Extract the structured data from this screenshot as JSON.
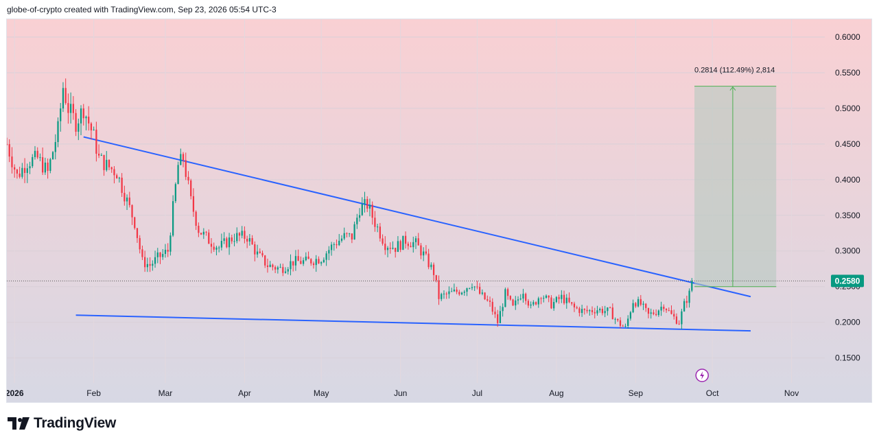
{
  "header": {
    "attribution": "globe-of-crypto created with TradingView.com, Sep 23, 2026 05:54 UTC-3"
  },
  "footer": {
    "brand": "TradingView",
    "logo_icon": "tradingview-logo-icon"
  },
  "colors": {
    "bg_top": "#f9d0d3",
    "bg_bottom": "#d7d8e4",
    "up_candle": "#089981",
    "down_candle": "#f23645",
    "trendline": "#2962ff",
    "measure_fill": "#b7c9c0",
    "measure_line": "#4caf50",
    "price_tag": "#089981",
    "flash_icon": "#9c27b0"
  },
  "chart_data": {
    "type": "candlestick",
    "title": "",
    "xlabel": "",
    "ylabel": "",
    "x_range": [
      "2025-12-29",
      "2026-11-14"
    ],
    "ylim": [
      0.115,
      0.625
    ],
    "grid": true,
    "y_ticks": [
      "0.1500",
      "0.2000",
      "0.2500",
      "0.3000",
      "0.3500",
      "0.4000",
      "0.4500",
      "0.5000",
      "0.5500",
      "0.6000"
    ],
    "x_ticks": [
      {
        "date": "2026-01-01",
        "label": "2026"
      },
      {
        "date": "2026-02-01",
        "label": "Feb"
      },
      {
        "date": "2026-03-01",
        "label": "Mar"
      },
      {
        "date": "2026-04-01",
        "label": "Apr"
      },
      {
        "date": "2026-05-01",
        "label": "May"
      },
      {
        "date": "2026-06-01",
        "label": "Jun"
      },
      {
        "date": "2026-07-01",
        "label": "Jul"
      },
      {
        "date": "2026-08-01",
        "label": "Aug"
      },
      {
        "date": "2026-09-01",
        "label": "Sep"
      },
      {
        "date": "2026-10-01",
        "label": "Oct"
      },
      {
        "date": "2026-11-01",
        "label": "Nov"
      }
    ],
    "start_date": "2025-12-29",
    "end_date": "2026-09-23",
    "close_path": [
      [
        "2025-12-29",
        0.45
      ],
      [
        "2026-01-02",
        0.405
      ],
      [
        "2026-01-06",
        0.425
      ],
      [
        "2026-01-10",
        0.43
      ],
      [
        "2026-01-14",
        0.41
      ],
      [
        "2026-01-18",
        0.47
      ],
      [
        "2026-01-20",
        0.53
      ],
      [
        "2026-01-22",
        0.5
      ],
      [
        "2026-01-25",
        0.48
      ],
      [
        "2026-01-28",
        0.5
      ],
      [
        "2026-02-01",
        0.46
      ],
      [
        "2026-02-03",
        0.43
      ],
      [
        "2026-02-06",
        0.42
      ],
      [
        "2026-02-10",
        0.41
      ],
      [
        "2026-02-14",
        0.37
      ],
      [
        "2026-02-17",
        0.34
      ],
      [
        "2026-02-20",
        0.285
      ],
      [
        "2026-02-23",
        0.28
      ],
      [
        "2026-02-26",
        0.29
      ],
      [
        "2026-03-02",
        0.3
      ],
      [
        "2026-03-06",
        0.42
      ],
      [
        "2026-03-08",
        0.43
      ],
      [
        "2026-03-11",
        0.37
      ],
      [
        "2026-03-14",
        0.33
      ],
      [
        "2026-03-18",
        0.315
      ],
      [
        "2026-03-22",
        0.305
      ],
      [
        "2026-03-28",
        0.32
      ],
      [
        "2026-04-02",
        0.32
      ],
      [
        "2026-04-06",
        0.295
      ],
      [
        "2026-04-10",
        0.28
      ],
      [
        "2026-04-15",
        0.275
      ],
      [
        "2026-04-20",
        0.285
      ],
      [
        "2026-04-25",
        0.285
      ],
      [
        "2026-05-01",
        0.29
      ],
      [
        "2026-05-06",
        0.31
      ],
      [
        "2026-05-10",
        0.32
      ],
      [
        "2026-05-13",
        0.32
      ],
      [
        "2026-05-16",
        0.36
      ],
      [
        "2026-05-19",
        0.365
      ],
      [
        "2026-05-22",
        0.34
      ],
      [
        "2026-05-26",
        0.31
      ],
      [
        "2026-05-30",
        0.305
      ],
      [
        "2026-06-03",
        0.315
      ],
      [
        "2026-06-07",
        0.31
      ],
      [
        "2026-06-10",
        0.295
      ],
      [
        "2026-06-14",
        0.27
      ],
      [
        "2026-06-16",
        0.235
      ],
      [
        "2026-06-20",
        0.24
      ],
      [
        "2026-06-25",
        0.245
      ],
      [
        "2026-06-29",
        0.255
      ],
      [
        "2026-07-02",
        0.24
      ],
      [
        "2026-07-06",
        0.225
      ],
      [
        "2026-07-09",
        0.2
      ],
      [
        "2026-07-12",
        0.24
      ],
      [
        "2026-07-15",
        0.22
      ],
      [
        "2026-07-19",
        0.245
      ],
      [
        "2026-07-22",
        0.22
      ],
      [
        "2026-07-26",
        0.24
      ],
      [
        "2026-07-30",
        0.225
      ],
      [
        "2026-08-03",
        0.235
      ],
      [
        "2026-08-08",
        0.22
      ],
      [
        "2026-08-12",
        0.215
      ],
      [
        "2026-08-17",
        0.218
      ],
      [
        "2026-08-22",
        0.215
      ],
      [
        "2026-08-25",
        0.2
      ],
      [
        "2026-08-28",
        0.192
      ],
      [
        "2026-08-31",
        0.23
      ],
      [
        "2026-09-03",
        0.225
      ],
      [
        "2026-09-06",
        0.21
      ],
      [
        "2026-09-09",
        0.215
      ],
      [
        "2026-09-12",
        0.225
      ],
      [
        "2026-09-15",
        0.21
      ],
      [
        "2026-09-18",
        0.2
      ],
      [
        "2026-09-20",
        0.225
      ],
      [
        "2026-09-22",
        0.24
      ],
      [
        "2026-09-23",
        0.258
      ]
    ],
    "series": [
      {
        "type": "trendline",
        "points": [
          [
            "2026-01-28",
            0.46
          ],
          [
            "2026-10-16",
            0.236
          ]
        ]
      },
      {
        "type": "trendline",
        "points": [
          [
            "2026-01-25",
            0.21
          ],
          [
            "2026-10-16",
            0.188
          ]
        ]
      }
    ],
    "last_price": 0.258,
    "last_price_label": "0.2580",
    "measure": {
      "label": "0.2814 (112.49%) 2,814",
      "x_start": "2026-09-24",
      "x_end": "2026-10-26",
      "y_low": 0.25,
      "y_high": 0.531,
      "arrow_x": "2026-10-09"
    }
  }
}
